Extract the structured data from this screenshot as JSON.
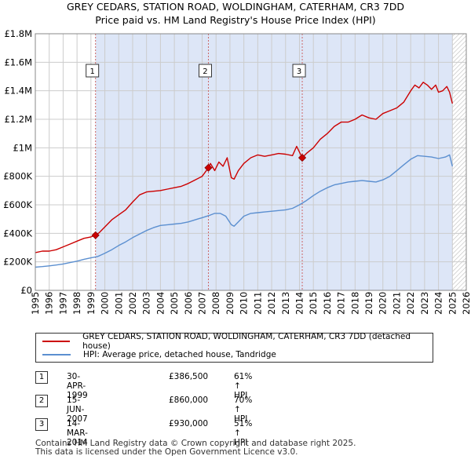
{
  "title_line1": "GREY CEDARS, STATION ROAD, WOLDINGHAM, CATERHAM, CR3 7DD",
  "title_line2": "Price paid vs. HM Land Registry's House Price Index (HPI)",
  "colors": {
    "property": "#cc0000",
    "hpi": "#5b8fd0",
    "shade": "#dde6f7",
    "grid": "#cccccc"
  },
  "chart_data": {
    "type": "line",
    "xlim": [
      1995,
      2026
    ],
    "ylim": [
      0,
      1800000
    ],
    "x_ticks": [
      1995,
      1996,
      1997,
      1998,
      1999,
      2000,
      2001,
      2002,
      2003,
      2004,
      2005,
      2006,
      2007,
      2008,
      2009,
      2010,
      2011,
      2012,
      2013,
      2014,
      2015,
      2016,
      2017,
      2018,
      2019,
      2020,
      2021,
      2022,
      2023,
      2024,
      2025,
      2026
    ],
    "y_ticks": [
      {
        "value": 0,
        "label": "£0"
      },
      {
        "value": 200000,
        "label": "£200K"
      },
      {
        "value": 400000,
        "label": "£400K"
      },
      {
        "value": 600000,
        "label": "£600K"
      },
      {
        "value": 800000,
        "label": "£800K"
      },
      {
        "value": 1000000,
        "label": "£1M"
      },
      {
        "value": 1200000,
        "label": "£1.2M"
      },
      {
        "value": 1400000,
        "label": "£1.4M"
      },
      {
        "value": 1600000,
        "label": "£1.6M"
      },
      {
        "value": 1800000,
        "label": "£1.8M"
      }
    ],
    "shaded_from": 1999.33,
    "hatched_from": 2025.0,
    "series": [
      {
        "name": "GREY CEDARS, STATION ROAD, WOLDINGHAM, CATERHAM, CR3 7DD (detached house)",
        "x": [
          1995.0,
          1995.5,
          1996.0,
          1996.5,
          1997.0,
          1997.5,
          1998.0,
          1998.5,
          1999.0,
          1999.33,
          1999.6,
          2000.0,
          2000.5,
          2001.0,
          2001.5,
          2002.0,
          2002.5,
          2003.0,
          2003.5,
          2004.0,
          2004.5,
          2005.0,
          2005.5,
          2006.0,
          2006.5,
          2007.0,
          2007.45,
          2007.6,
          2007.9,
          2008.2,
          2008.5,
          2008.8,
          2009.1,
          2009.3,
          2009.6,
          2010.0,
          2010.5,
          2011.0,
          2011.5,
          2012.0,
          2012.5,
          2013.0,
          2013.5,
          2013.8,
          2014.2,
          2014.5,
          2015.0,
          2015.5,
          2016.0,
          2016.5,
          2017.0,
          2017.5,
          2018.0,
          2018.5,
          2019.0,
          2019.5,
          2020.0,
          2020.5,
          2021.0,
          2021.5,
          2022.0,
          2022.3,
          2022.6,
          2022.9,
          2023.2,
          2023.5,
          2023.8,
          2024.0,
          2024.3,
          2024.6,
          2024.8,
          2025.0
        ],
        "values": [
          265000,
          275000,
          275000,
          285000,
          305000,
          325000,
          345000,
          365000,
          375000,
          386500,
          405000,
          445000,
          495000,
          530000,
          565000,
          620000,
          670000,
          690000,
          695000,
          700000,
          710000,
          720000,
          730000,
          750000,
          775000,
          800000,
          860000,
          890000,
          840000,
          900000,
          870000,
          930000,
          790000,
          780000,
          840000,
          890000,
          930000,
          950000,
          940000,
          950000,
          960000,
          955000,
          945000,
          1010000,
          930000,
          960000,
          1000000,
          1060000,
          1100000,
          1150000,
          1180000,
          1180000,
          1200000,
          1230000,
          1210000,
          1200000,
          1240000,
          1260000,
          1280000,
          1320000,
          1400000,
          1440000,
          1420000,
          1460000,
          1440000,
          1410000,
          1440000,
          1390000,
          1400000,
          1430000,
          1390000,
          1310000
        ]
      },
      {
        "name": "HPI: Average price, detached house, Tandridge",
        "x": [
          1995.0,
          1995.5,
          1996.0,
          1996.5,
          1997.0,
          1997.5,
          1998.0,
          1998.5,
          1999.0,
          1999.5,
          2000.0,
          2000.5,
          2001.0,
          2001.5,
          2002.0,
          2002.5,
          2003.0,
          2003.5,
          2004.0,
          2004.5,
          2005.0,
          2005.5,
          2006.0,
          2006.5,
          2007.0,
          2007.5,
          2007.9,
          2008.3,
          2008.7,
          2009.1,
          2009.3,
          2009.6,
          2010.0,
          2010.5,
          2011.0,
          2011.5,
          2012.0,
          2012.5,
          2013.0,
          2013.5,
          2014.0,
          2014.5,
          2015.0,
          2015.5,
          2016.0,
          2016.5,
          2017.0,
          2017.5,
          2018.0,
          2018.5,
          2019.0,
          2019.5,
          2020.0,
          2020.5,
          2021.0,
          2021.5,
          2022.0,
          2022.5,
          2023.0,
          2023.5,
          2024.0,
          2024.5,
          2024.8,
          2025.0
        ],
        "values": [
          163000,
          167000,
          172000,
          178000,
          185000,
          195000,
          205000,
          218000,
          228000,
          238000,
          260000,
          285000,
          315000,
          340000,
          370000,
          395000,
          420000,
          440000,
          455000,
          460000,
          465000,
          470000,
          480000,
          495000,
          510000,
          525000,
          540000,
          540000,
          520000,
          460000,
          450000,
          480000,
          520000,
          540000,
          545000,
          550000,
          555000,
          560000,
          565000,
          575000,
          600000,
          630000,
          665000,
          695000,
          720000,
          740000,
          750000,
          760000,
          765000,
          770000,
          765000,
          760000,
          775000,
          800000,
          840000,
          880000,
          920000,
          945000,
          940000,
          935000,
          925000,
          935000,
          950000,
          870000
        ]
      }
    ],
    "transactions": [
      {
        "label": "1",
        "date": "30-APR-1999",
        "x": 1999.33,
        "price": 386500,
        "price_text": "£386,500",
        "hpi_text": "61% ↑ HPI"
      },
      {
        "label": "2",
        "date": "15-JUN-2007",
        "x": 2007.45,
        "price": 860000,
        "price_text": "£860,000",
        "hpi_text": "70% ↑ HPI"
      },
      {
        "label": "3",
        "date": "14-MAR-2014",
        "x": 2014.2,
        "price": 930000,
        "price_text": "£930,000",
        "hpi_text": "51% ↑ HPI"
      }
    ]
  },
  "legend": {
    "property": "GREY CEDARS, STATION ROAD, WOLDINGHAM, CATERHAM, CR3 7DD (detached house)",
    "hpi": "HPI: Average price, detached house, Tandridge"
  },
  "footer_line1": "Contains HM Land Registry data © Crown copyright and database right 2025.",
  "footer_line2": "This data is licensed under the Open Government Licence v3.0."
}
